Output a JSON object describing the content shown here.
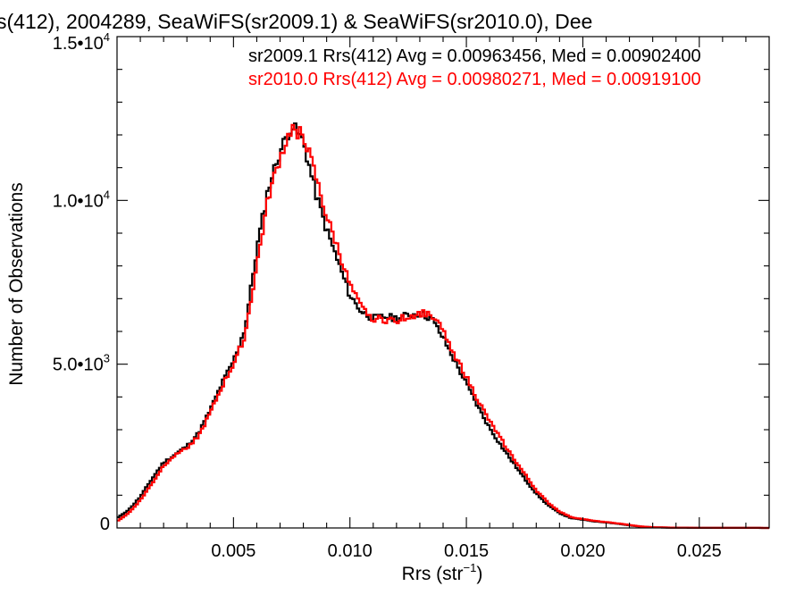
{
  "chart_data": {
    "type": "line",
    "title": "s(412), 2004289, SeaWiFS(sr2009.1) & SeaWiFS(sr2010.0), Dee",
    "xlabel": "Rrs (str",
    "xlabel_sup": "−1",
    "xlabel_close": ")",
    "ylabel": "Number of Observations",
    "xlim": [
      0.0,
      0.028
    ],
    "ylim": [
      0,
      15000
    ],
    "x_ticks": [
      0.005,
      0.01,
      0.015,
      0.02,
      0.025
    ],
    "x_tick_labels": [
      "0.005",
      "0.010",
      "0.015",
      "0.020",
      "0.025"
    ],
    "x_minor_step": 0.001,
    "y_ticks": [
      {
        "value": 0,
        "mantissa": "0",
        "exponent": ""
      },
      {
        "value": 5000,
        "mantissa": "5.0•10",
        "exponent": "3"
      },
      {
        "value": 10000,
        "mantissa": "1.0•10",
        "exponent": "4"
      },
      {
        "value": 15000,
        "mantissa": "1.5•10",
        "exponent": "4"
      }
    ],
    "y_minor_step": 1000,
    "grid": false,
    "legend_placement": "top-right",
    "series": [
      {
        "name": "sr2009.1",
        "legend": "sr2009.1 Rrs(412) Avg = 0.00963456, Med = 0.00902400",
        "color": "#000000",
        "points": [
          [
            0.0,
            300
          ],
          [
            0.0005,
            550
          ],
          [
            0.001,
            950
          ],
          [
            0.0015,
            1500
          ],
          [
            0.002,
            2000
          ],
          [
            0.0025,
            2250
          ],
          [
            0.003,
            2500
          ],
          [
            0.0035,
            2900
          ],
          [
            0.004,
            3600
          ],
          [
            0.0045,
            4400
          ],
          [
            0.005,
            5100
          ],
          [
            0.0055,
            6100
          ],
          [
            0.006,
            8500
          ],
          [
            0.0065,
            10400
          ],
          [
            0.007,
            11500
          ],
          [
            0.0075,
            12300
          ],
          [
            0.008,
            11800
          ],
          [
            0.0085,
            10300
          ],
          [
            0.009,
            9100
          ],
          [
            0.0095,
            8100
          ],
          [
            0.01,
            7100
          ],
          [
            0.0105,
            6600
          ],
          [
            0.011,
            6400
          ],
          [
            0.0115,
            6450
          ],
          [
            0.012,
            6400
          ],
          [
            0.0125,
            6500
          ],
          [
            0.013,
            6550
          ],
          [
            0.0135,
            6400
          ],
          [
            0.014,
            5800
          ],
          [
            0.0145,
            5100
          ],
          [
            0.015,
            4400
          ],
          [
            0.0155,
            3700
          ],
          [
            0.016,
            3050
          ],
          [
            0.0165,
            2500
          ],
          [
            0.017,
            2000
          ],
          [
            0.0175,
            1500
          ],
          [
            0.018,
            1050
          ],
          [
            0.0185,
            700
          ],
          [
            0.019,
            450
          ],
          [
            0.0195,
            300
          ],
          [
            0.02,
            250
          ],
          [
            0.0205,
            200
          ],
          [
            0.021,
            170
          ],
          [
            0.0215,
            130
          ],
          [
            0.022,
            80
          ],
          [
            0.0225,
            40
          ],
          [
            0.023,
            20
          ],
          [
            0.024,
            8
          ],
          [
            0.026,
            3
          ],
          [
            0.028,
            1
          ]
        ]
      },
      {
        "name": "sr2010.0",
        "legend": "sr2010.0 Rrs(412) Avg = 0.00980271, Med = 0.00919100",
        "color": "#ff0000",
        "points": [
          [
            0.0,
            200
          ],
          [
            0.0005,
            450
          ],
          [
            0.001,
            850
          ],
          [
            0.0015,
            1350
          ],
          [
            0.002,
            1900
          ],
          [
            0.0025,
            2250
          ],
          [
            0.003,
            2450
          ],
          [
            0.0035,
            2800
          ],
          [
            0.004,
            3500
          ],
          [
            0.0045,
            4300
          ],
          [
            0.005,
            5000
          ],
          [
            0.0055,
            5900
          ],
          [
            0.006,
            8000
          ],
          [
            0.0065,
            10100
          ],
          [
            0.007,
            11300
          ],
          [
            0.0075,
            12200
          ],
          [
            0.008,
            12000
          ],
          [
            0.0085,
            10800
          ],
          [
            0.009,
            9500
          ],
          [
            0.0095,
            8500
          ],
          [
            0.01,
            7400
          ],
          [
            0.0105,
            6700
          ],
          [
            0.011,
            6400
          ],
          [
            0.0115,
            6350
          ],
          [
            0.012,
            6350
          ],
          [
            0.0125,
            6450
          ],
          [
            0.013,
            6550
          ],
          [
            0.0135,
            6550
          ],
          [
            0.014,
            6000
          ],
          [
            0.0145,
            5300
          ],
          [
            0.015,
            4600
          ],
          [
            0.0155,
            3900
          ],
          [
            0.016,
            3250
          ],
          [
            0.0165,
            2700
          ],
          [
            0.017,
            2150
          ],
          [
            0.0175,
            1650
          ],
          [
            0.018,
            1150
          ],
          [
            0.0185,
            780
          ],
          [
            0.019,
            500
          ],
          [
            0.0195,
            330
          ],
          [
            0.02,
            270
          ],
          [
            0.0205,
            220
          ],
          [
            0.021,
            180
          ],
          [
            0.0215,
            140
          ],
          [
            0.022,
            90
          ],
          [
            0.0225,
            45
          ],
          [
            0.023,
            22
          ],
          [
            0.024,
            9
          ],
          [
            0.026,
            3
          ],
          [
            0.028,
            1
          ]
        ]
      }
    ]
  }
}
